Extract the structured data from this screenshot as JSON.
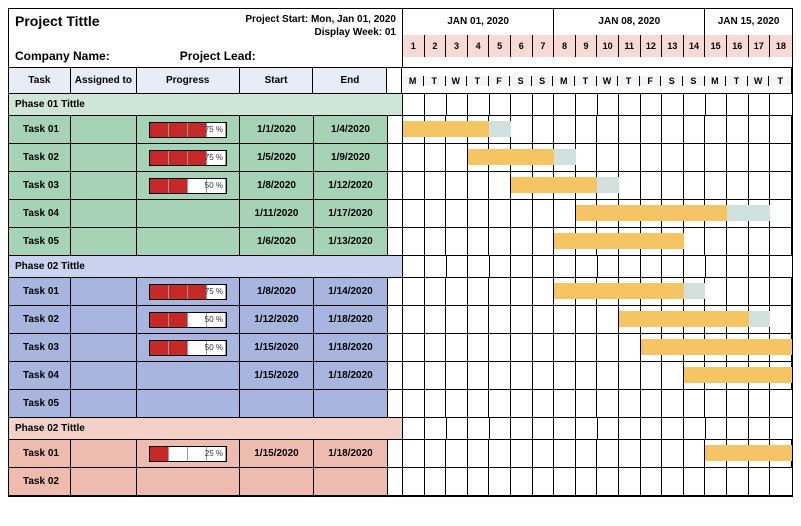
{
  "header": {
    "project_title": "Project Tittle",
    "project_start_label": "Project Start: Mon, Jan 01, 2020",
    "display_week_label": "Display Week: 01",
    "company_label": "Company Name:",
    "lead_label": "Project Lead:"
  },
  "columns": {
    "task": "Task",
    "assigned": "Assigned to",
    "progress": "Progress",
    "start": "Start",
    "end": "End"
  },
  "colors": {
    "header_tint": "#e8ecf6",
    "day_num_bg": "#f9d9d4",
    "dow_bg": "#f3f5fb",
    "phase1_header": "#cde6d5",
    "phase1_row": "#a6d3b5",
    "phase2_header": "#c9d2ee",
    "phase2_row": "#a7b5df",
    "phase3_header": "#f3d0c8",
    "phase3_row": "#eebcaf",
    "bar_main": "#f5c463",
    "bar_tail": "#cfe0dd",
    "prog_fill": "#c62828"
  },
  "timeline": {
    "start_day": 1,
    "total_days": 18,
    "day_width": 21.6,
    "weeks": [
      {
        "label": "JAN 01, 2020",
        "days": 7
      },
      {
        "label": "JAN 08, 2020",
        "days": 7
      },
      {
        "label": "JAN 15, 2020",
        "days": 4
      }
    ],
    "day_numbers": [
      1,
      2,
      3,
      4,
      5,
      6,
      7,
      8,
      9,
      10,
      11,
      12,
      13,
      14,
      15,
      16,
      17,
      18
    ],
    "dow": [
      "M",
      "T",
      "W",
      "T",
      "F",
      "S",
      "S",
      "M",
      "T",
      "W",
      "T",
      "F",
      "S",
      "S",
      "M",
      "T",
      "W",
      "T"
    ]
  },
  "phases": [
    {
      "title": "Phase 01 Tittle",
      "header_color": "#cde6d5",
      "row_color": "#a6d3b5",
      "tasks": [
        {
          "name": "Task 01",
          "progress": 75,
          "progress_label": "75 %",
          "start": "1/1/2020",
          "end": "1/4/2020",
          "bar_start": 1,
          "bar_span": 4,
          "tail": 1
        },
        {
          "name": "Task 02",
          "progress": 75,
          "progress_label": "75 %",
          "start": "1/5/2020",
          "end": "1/9/2020",
          "bar_start": 4,
          "bar_span": 4,
          "tail": 1
        },
        {
          "name": "Task 03",
          "progress": 50,
          "progress_label": "50 %",
          "start": "1/8/2020",
          "end": "1/12/2020",
          "bar_start": 6,
          "bar_span": 4,
          "tail": 1
        },
        {
          "name": "Task 04",
          "progress": null,
          "progress_label": "",
          "start": "1/11/2020",
          "end": "1/17/2020",
          "bar_start": 9,
          "bar_span": 7,
          "tail": 2
        },
        {
          "name": "Task 05",
          "progress": null,
          "progress_label": "",
          "start": "1/6/2020",
          "end": "1/13/2020",
          "bar_start": 8,
          "bar_span": 6,
          "tail": 0
        }
      ]
    },
    {
      "title": "Phase 02 Tittle",
      "header_color": "#c9d2ee",
      "row_color": "#a7b5df",
      "tasks": [
        {
          "name": "Task 01",
          "progress": 75,
          "progress_label": "75 %",
          "start": "1/8/2020",
          "end": "1/14/2020",
          "bar_start": 8,
          "bar_span": 6,
          "tail": 1
        },
        {
          "name": "Task 02",
          "progress": 50,
          "progress_label": "50 %",
          "start": "1/12/2020",
          "end": "1/18/2020",
          "bar_start": 11,
          "bar_span": 6,
          "tail": 1
        },
        {
          "name": "Task 03",
          "progress": 50,
          "progress_label": "50 %",
          "start": "1/15/2020",
          "end": "1/18/2020",
          "bar_start": 12,
          "bar_span": 7,
          "tail": 0
        },
        {
          "name": "Task 04",
          "progress": null,
          "progress_label": "",
          "start": "1/15/2020",
          "end": "1/18/2020",
          "bar_start": 14,
          "bar_span": 5,
          "tail": 0
        },
        {
          "name": "Task 05",
          "progress": null,
          "progress_label": "",
          "start": "",
          "end": "",
          "bar_start": null,
          "bar_span": 0,
          "tail": 0
        }
      ]
    },
    {
      "title": "Phase 02 Tittle",
      "header_color": "#f3d0c8",
      "row_color": "#eebcaf",
      "tasks": [
        {
          "name": "Task 01",
          "progress": 25,
          "progress_label": "25 %",
          "start": "1/15/2020",
          "end": "1/18/2020",
          "bar_start": 15,
          "bar_span": 4,
          "tail": 0
        },
        {
          "name": "Task 02",
          "progress": null,
          "progress_label": "",
          "start": "",
          "end": "",
          "bar_start": null,
          "bar_span": 0,
          "tail": 0
        }
      ]
    }
  ]
}
